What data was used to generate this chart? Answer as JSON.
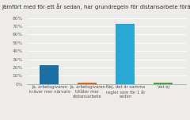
{
  "title": "Jämfört med för ett år sedan, har grundregeln för distansarbete förändrats?",
  "categories": [
    "Ja, arbetsgivaren\nkräver mer närvaro",
    "Ja, arbetsgivaren\ntillåter mer\ndistansarbete",
    "Nej, det är samma\nregler som för 1 år\nsedan",
    "Vet ej"
  ],
  "values": [
    23,
    2,
    73,
    2
  ],
  "colors": [
    "#1a6fa3",
    "#d96b1a",
    "#29a8d4",
    "#3fa843"
  ],
  "ylim": [
    0,
    80
  ],
  "yticks": [
    0,
    10,
    20,
    30,
    40,
    50,
    60,
    70,
    80
  ],
  "ytick_labels": [
    "0%",
    "10%",
    "20%",
    "30%",
    "40%",
    "50%",
    "60%",
    "70%",
    "80%"
  ],
  "background_color": "#eeece8",
  "title_fontsize": 5.0,
  "tick_fontsize": 4.2,
  "label_fontsize": 3.8
}
